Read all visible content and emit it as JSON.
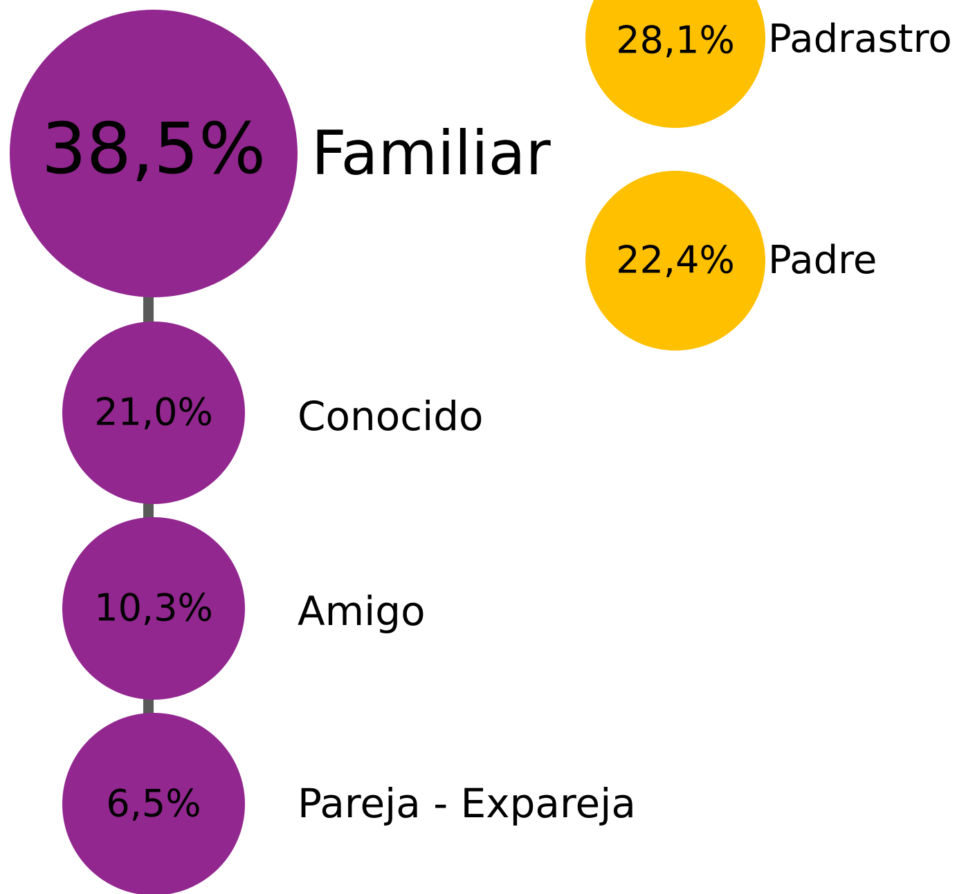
{
  "nodes": [
    {
      "value": "38,5%",
      "label": "Familiar"
    },
    {
      "value": "21,0%",
      "label": "Conocido"
    },
    {
      "value": "10,3%",
      "label": "Amigo"
    },
    {
      "value": "6,5%",
      "label": "Pareja - Expareja"
    }
  ],
  "sub_nodes": [
    {
      "value": "28,1%",
      "label": "Padrastro"
    },
    {
      "value": "22,4%",
      "label": "Padre"
    }
  ]
}
